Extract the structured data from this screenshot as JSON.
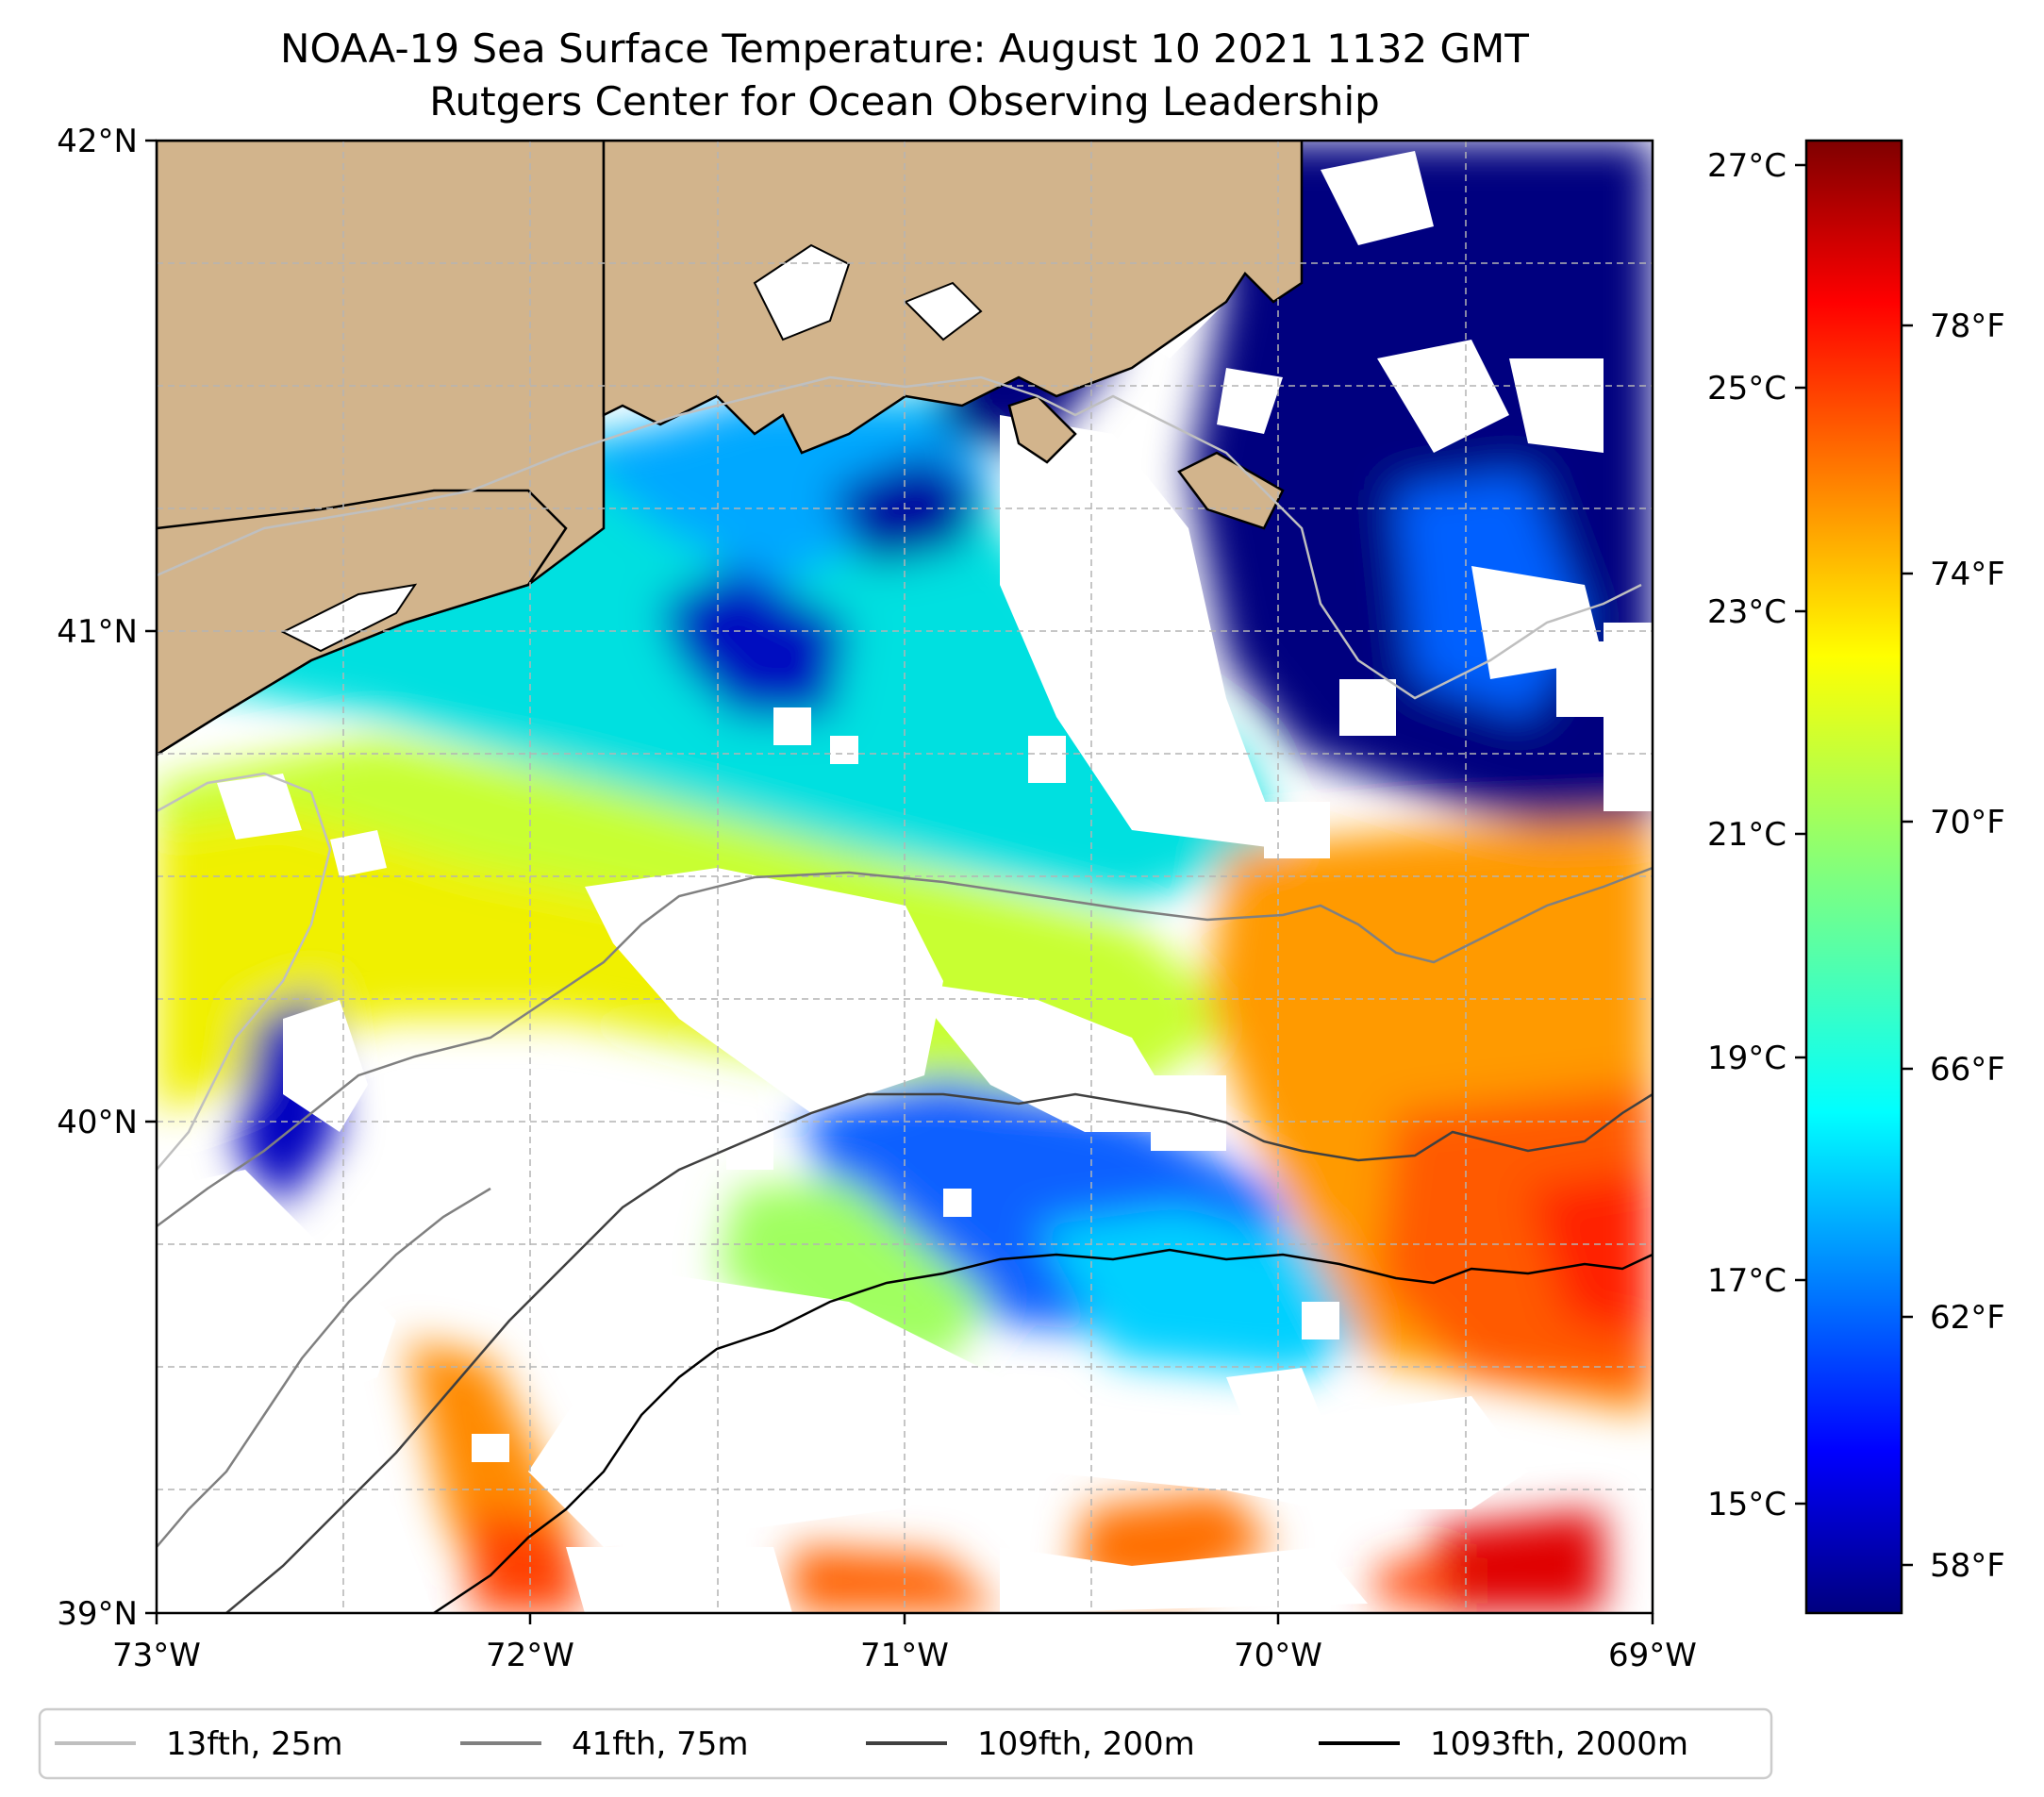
{
  "title": {
    "line1": "NOAA-19 Sea Surface Temperature: August 10 2021 1132 GMT",
    "line2": "Rutgers Center for Ocean Observing Leadership"
  },
  "map": {
    "lon_ticks": [
      "73°W",
      "72°W",
      "71°W",
      "70°W",
      "69°W"
    ],
    "lat_ticks": [
      "42°N",
      "41°N",
      "40°N",
      "39°N"
    ],
    "lon_range": [
      -73,
      -69
    ],
    "lat_range": [
      39,
      42
    ],
    "land_color": "#d2b48c",
    "grid": "dashed"
  },
  "colorbar": {
    "celsius_ticks": [
      "27°C",
      "25°C",
      "23°C",
      "21°C",
      "19°C",
      "17°C",
      "15°C"
    ],
    "fahrenheit_ticks": [
      "78°F",
      "74°F",
      "70°F",
      "66°F",
      "62°F",
      "58°F"
    ],
    "colormap": "jet",
    "colors": [
      "#00007f",
      "#0000ff",
      "#007fff",
      "#00ffff",
      "#7fff7f",
      "#ffff00",
      "#ff7f00",
      "#ff0000",
      "#7f0000"
    ]
  },
  "legend": {
    "items": [
      {
        "label": "13fth, 25m",
        "color": "#bfbfbf"
      },
      {
        "label": "41fth, 75m",
        "color": "#808080"
      },
      {
        "label": "109fth, 200m",
        "color": "#404040"
      },
      {
        "label": "1093fth, 2000m",
        "color": "#000000"
      }
    ]
  }
}
